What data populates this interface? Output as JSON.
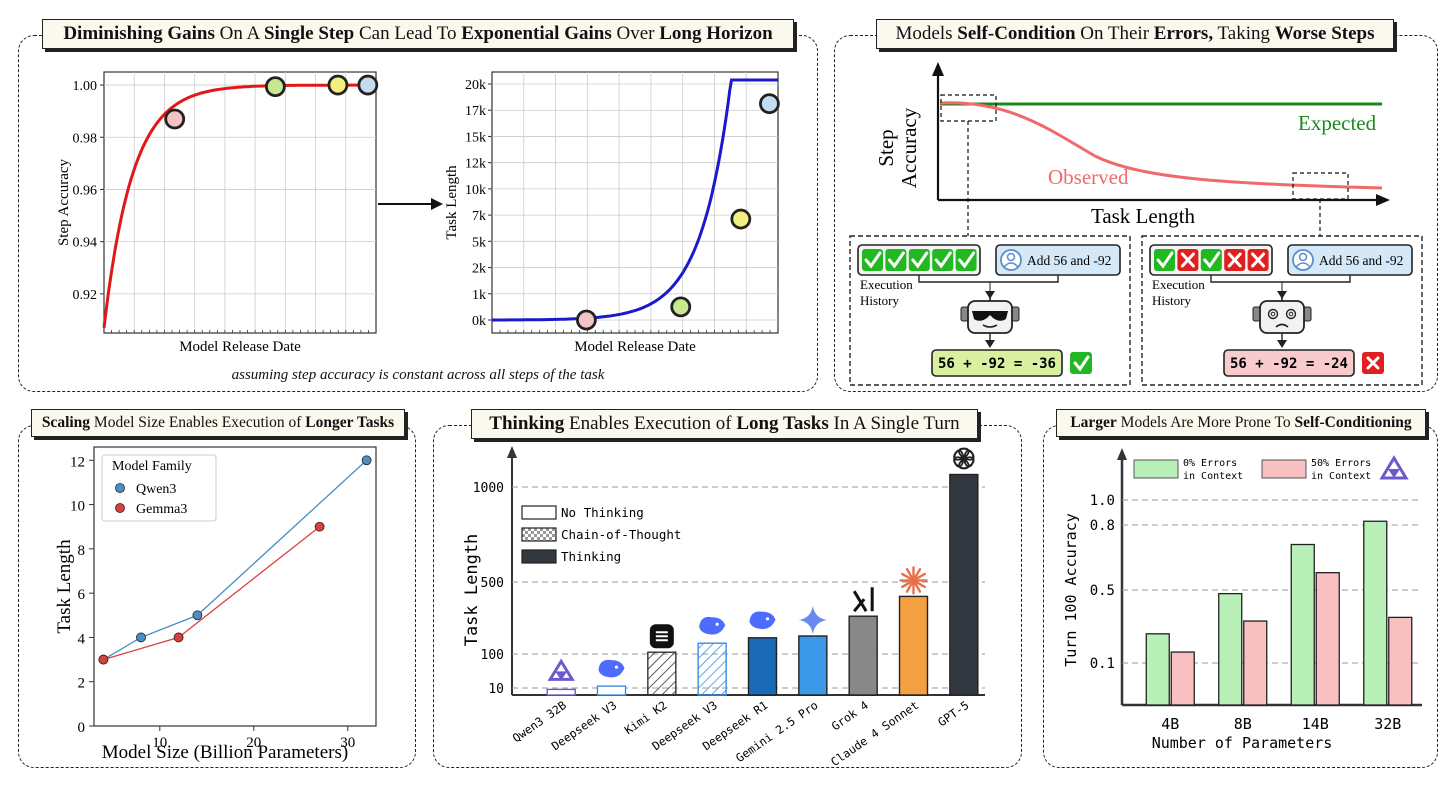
{
  "colors": {
    "red_curve": "#e01818",
    "blue_curve": "#1a1acc",
    "expected_green": "#1a8a1a",
    "observed_red": "#f06a6a",
    "qwen_blue": "#4a8ec4",
    "gemma_red": "#d84040",
    "no_error_green": "#b8f0b8",
    "error_pink": "#f8c0c0",
    "point_pink": "#f4c4c4",
    "point_green": "#c8e890",
    "point_yellow": "#f4f080",
    "point_blue": "#c4dcf0"
  },
  "panel1": {
    "title_parts": [
      {
        "t": "Diminishing Gains",
        "b": true
      },
      {
        "t": " On A ",
        "b": false
      },
      {
        "t": "Single Step",
        "b": true
      },
      {
        "t": " Can Lead To ",
        "b": false
      },
      {
        "t": "Exponential Gains",
        "b": true
      },
      {
        "t": " Over ",
        "b": false
      },
      {
        "t": "Long Horizon",
        "b": true
      }
    ],
    "footnote": "assuming step accuracy is constant across all steps of the task"
  },
  "panel2": {
    "title_parts": [
      {
        "t": "Models ",
        "b": false
      },
      {
        "t": "Self-Condition",
        "b": true
      },
      {
        "t": " On Their ",
        "b": false
      },
      {
        "t": "Errors,",
        "b": true
      },
      {
        "t": " Taking ",
        "b": false
      },
      {
        "t": "Worse Steps",
        "b": true
      }
    ],
    "ylabel_line1": "Step",
    "ylabel_line2": "Accuracy",
    "xlabel": "Task Length",
    "expected_label": "Expected",
    "observed_label": "Observed",
    "left_example": {
      "user_msg": "Add 56 and -92",
      "history_label_1": "Execution",
      "history_label_2": "History",
      "history": [
        "correct",
        "correct",
        "correct",
        "correct",
        "correct"
      ],
      "answer": "56 + -92 = -36",
      "result": "correct",
      "robot_face": "sunglasses"
    },
    "right_example": {
      "user_msg": "Add 56 and -92",
      "history_label_1": "Execution",
      "history_label_2": "History",
      "history": [
        "correct",
        "wrong",
        "correct",
        "wrong",
        "wrong"
      ],
      "answer": "56 + -92 = -24",
      "result": "wrong",
      "robot_face": "dizzy"
    }
  },
  "panel3": {
    "title_parts": [
      {
        "t": "Scaling",
        "b": true
      },
      {
        "t": " Model Size Enables Execution of ",
        "b": false
      },
      {
        "t": "Longer Tasks",
        "b": true
      }
    ]
  },
  "panel4": {
    "title_parts": [
      {
        "t": "Thinking",
        "b": true
      },
      {
        "t": " Enables Execution of ",
        "b": false
      },
      {
        "t": "Long Tasks",
        "b": true
      },
      {
        "t": " In A Single Turn",
        "b": false
      }
    ]
  },
  "panel5": {
    "title_parts": [
      {
        "t": "Larger",
        "b": true
      },
      {
        "t": " Models Are More Prone To ",
        "b": false
      },
      {
        "t": "Self-Conditioning",
        "b": true
      }
    ]
  },
  "chart_data": [
    {
      "id": "step_accuracy",
      "type": "line",
      "title": "",
      "xlabel": "Model Release Date",
      "ylabel": "Step Accuracy",
      "ylim": [
        0.905,
        1.005
      ],
      "yticks": [
        0.92,
        0.94,
        0.96,
        0.98,
        1.0
      ],
      "ytick_labels": [
        "0.92",
        "0.94",
        "0.96",
        "0.98",
        "1.00"
      ],
      "xlim": [
        0,
        1
      ],
      "curve": "exponential saturation",
      "points": [
        {
          "x": 0.26,
          "y": 0.987,
          "color": "pink"
        },
        {
          "x": 0.63,
          "y": 0.9994,
          "color": "green"
        },
        {
          "x": 0.86,
          "y": 1.0,
          "color": "yellow"
        },
        {
          "x": 0.97,
          "y": 1.0,
          "color": "blue"
        }
      ]
    },
    {
      "id": "task_length",
      "type": "line",
      "title": "",
      "xlabel": "Model Release Date",
      "ylabel": "Task Length",
      "ytick_labels": [
        "0k",
        "1k",
        "2k",
        "5k",
        "7k",
        "10k",
        "12k",
        "15k",
        "17k",
        "20k"
      ],
      "xlim": [
        0,
        1
      ],
      "curve": "exponential growth",
      "points": [
        {
          "x": 0.33,
          "tick": 0,
          "color": "pink"
        },
        {
          "x": 0.66,
          "tick": 0.5,
          "color": "green"
        },
        {
          "x": 0.87,
          "tick": 3.85,
          "color": "yellow"
        },
        {
          "x": 0.97,
          "tick": 8.25,
          "color": "blue"
        }
      ]
    },
    {
      "id": "self_conditioning_concept",
      "type": "line",
      "xlabel": "Task Length",
      "ylabel": "Step Accuracy",
      "series": [
        {
          "name": "Expected",
          "shape": "flat"
        },
        {
          "name": "Observed",
          "shape": "decline"
        }
      ]
    },
    {
      "id": "model_size",
      "type": "line",
      "xlabel": "Model Size (Billion Parameters)",
      "ylabel": "Task Length",
      "xlim": [
        3,
        33
      ],
      "ylim": [
        0,
        12.6
      ],
      "xticks": [
        10,
        20,
        30
      ],
      "yticks": [
        0,
        2,
        4,
        6,
        8,
        10,
        12
      ],
      "legend_title": "Model Family",
      "series": [
        {
          "name": "Qwen3",
          "x": [
            4,
            8,
            14,
            32
          ],
          "y": [
            3,
            4,
            5,
            12
          ]
        },
        {
          "name": "Gemma3",
          "x": [
            4,
            12,
            27
          ],
          "y": [
            3,
            4,
            9
          ]
        }
      ]
    },
    {
      "id": "thinking",
      "type": "bar",
      "ylabel": "Task Length",
      "yticks": [
        10,
        100,
        500,
        1000
      ],
      "ytick_labels": [
        "10",
        "100",
        "500",
        "1000"
      ],
      "legend": [
        "No Thinking",
        "Chain-of-Thought",
        "Thinking"
      ],
      "categories": [
        "Qwen3 32B",
        "Deepseek V3",
        "Kimi K2",
        "Deepseek V3",
        "Deepseek R1",
        "Gemini 2.5 Pro",
        "Grok 4",
        "Claude 4 Sonnet",
        "GPT-5"
      ],
      "mode": [
        "none",
        "none",
        "cot",
        "cot",
        "thinking",
        "thinking",
        "thinking",
        "thinking",
        "thinking"
      ],
      "values": [
        8,
        15,
        110,
        160,
        190,
        200,
        310,
        420,
        1050
      ],
      "colors": [
        "#6a5acd",
        "#3a8ee0",
        "#333333",
        "#3a8ee0",
        "#1a6ab8",
        "#3a9ae8",
        "#888888",
        "#f5a040",
        "#333840"
      ],
      "logos": [
        "qwen-icon",
        "deepseek-icon",
        "kimi-icon",
        "deepseek-icon",
        "deepseek-icon",
        "gemini-icon",
        "grok-icon",
        "claude-icon",
        "openai-icon"
      ]
    },
    {
      "id": "turn100",
      "type": "bar",
      "xlabel": "Number of Parameters",
      "ylabel": "Turn 100 Accuracy",
      "yticks": [
        0.1,
        0.5,
        0.8,
        1.0
      ],
      "ytick_labels": [
        "0.1",
        "0.5",
        "0.8",
        "1.0"
      ],
      "categories": [
        "4B",
        "8B",
        "14B",
        "32B"
      ],
      "series": [
        {
          "name": "0% Errors in Context",
          "label_1": "0% Errors",
          "label_2": "in Context",
          "values": [
            0.26,
            0.48,
            0.71,
            0.83
          ]
        },
        {
          "name": "50% Errors in Context",
          "label_1": "50% Errors",
          "label_2": "in Context",
          "values": [
            0.16,
            0.33,
            0.58,
            0.35
          ]
        }
      ]
    }
  ]
}
